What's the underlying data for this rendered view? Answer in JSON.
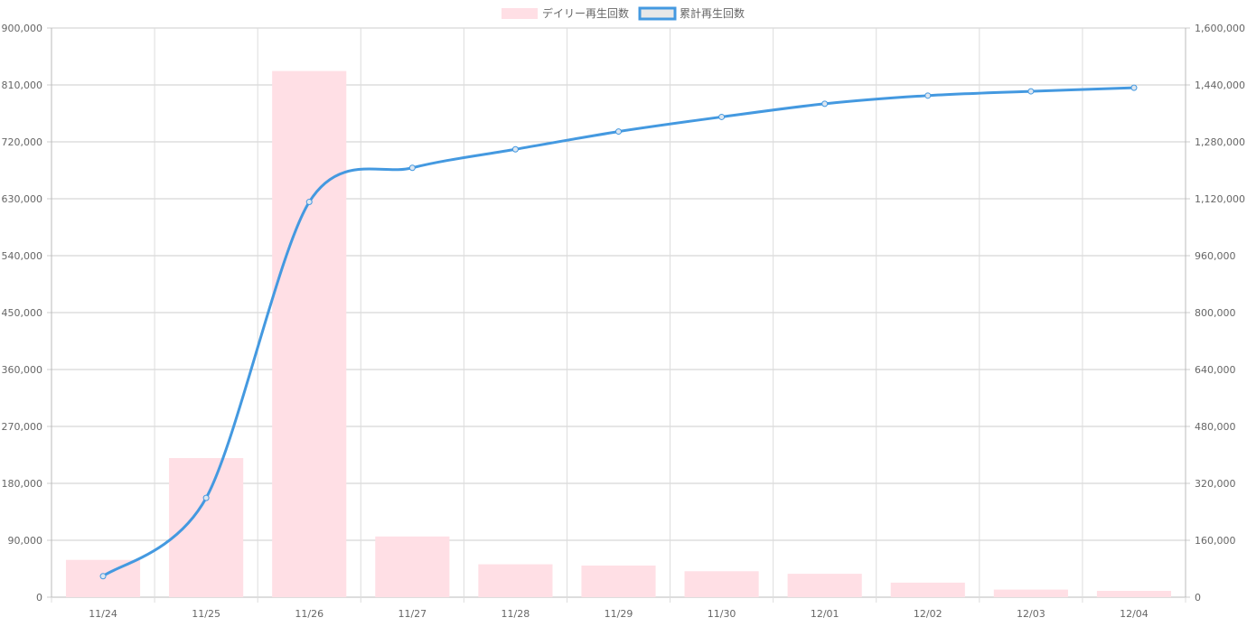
{
  "chart_data": {
    "type": "bar",
    "categories": [
      "11/24",
      "11/25",
      "11/26",
      "11/27",
      "11/28",
      "11/29",
      "11/30",
      "12/01",
      "12/02",
      "12/03",
      "12/04"
    ],
    "series": [
      {
        "name": "デイリー再生回数",
        "type": "bar",
        "axis": "left",
        "color": "#ffdfe5",
        "values": [
          59000,
          220000,
          832000,
          96000,
          52000,
          50000,
          41000,
          37000,
          23000,
          12000,
          10000
        ]
      },
      {
        "name": "累計再生回数",
        "type": "line",
        "axis": "right",
        "color": "#4499e0",
        "values": [
          59000,
          279000,
          1111000,
          1207000,
          1259000,
          1309000,
          1350000,
          1387000,
          1410000,
          1422000,
          1432000
        ]
      }
    ],
    "y_left": {
      "min": 0,
      "max": 900000,
      "ticks": [
        "0",
        "90,000",
        "180,000",
        "270,000",
        "360,000",
        "450,000",
        "540,000",
        "630,000",
        "720,000",
        "810,000",
        "900,000"
      ]
    },
    "y_right": {
      "min": 0,
      "max": 1600000,
      "ticks": [
        "0",
        "160,000",
        "320,000",
        "480,000",
        "640,000",
        "800,000",
        "960,000",
        "1,120,000",
        "1,280,000",
        "1,440,000",
        "1,600,000"
      ]
    },
    "grid": true,
    "legend_position": "top-center"
  }
}
